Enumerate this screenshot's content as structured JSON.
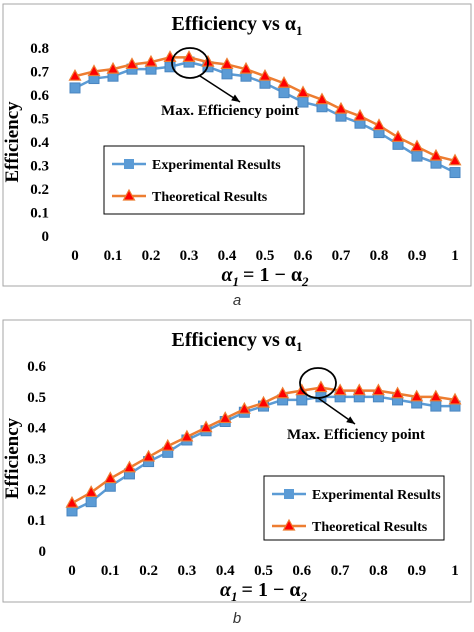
{
  "panel_labels": [
    "a",
    "b"
  ],
  "colors": {
    "experimental": "#5B9BD5",
    "theoretical": "#ED7D31",
    "theoretical_marker_fill": "#FF0000",
    "border": "#A6A6A6",
    "text": "#000000"
  },
  "chart_data": [
    {
      "type": "line",
      "title": "Efficiency vs α",
      "title_subscript": "1",
      "ylabel": "Efficiency",
      "xlabel": "α",
      "xlabel_subscript": "1",
      "xlabel_rest": "= 1 − α",
      "xlabel_rest_subscript": "2",
      "x": [
        0,
        0.05,
        0.1,
        0.15,
        0.2,
        0.25,
        0.3,
        0.35,
        0.4,
        0.45,
        0.5,
        0.55,
        0.6,
        0.65,
        0.7,
        0.75,
        0.8,
        0.85,
        0.9,
        0.95,
        1
      ],
      "xticks": [
        "0",
        "0.1",
        "0.2",
        "0.3",
        "0.4",
        "0.5",
        "0.6",
        "0.7",
        "0.8",
        "0.9",
        "1"
      ],
      "xtick_values": [
        0,
        0.1,
        0.2,
        0.3,
        0.4,
        0.5,
        0.6,
        0.7,
        0.8,
        0.9,
        1
      ],
      "yticks": [
        "0",
        "0.1",
        "0.2",
        "0.3",
        "0.4",
        "0.5",
        "0.6",
        "0.7",
        "0.8"
      ],
      "ytick_values": [
        0,
        0.1,
        0.2,
        0.3,
        0.4,
        0.5,
        0.6,
        0.7,
        0.8
      ],
      "xlim": [
        0,
        1
      ],
      "ylim": [
        0,
        0.8
      ],
      "grid": false,
      "legend_position": "center-left",
      "series": [
        {
          "name": "Experimental Results",
          "marker": "square",
          "values": [
            0.63,
            0.67,
            0.68,
            0.71,
            0.71,
            0.72,
            0.74,
            0.72,
            0.69,
            0.68,
            0.65,
            0.61,
            0.57,
            0.55,
            0.51,
            0.48,
            0.44,
            0.39,
            0.34,
            0.31,
            0.27
          ]
        },
        {
          "name": "Theoretical Results",
          "marker": "triangle",
          "values": [
            0.68,
            0.7,
            0.71,
            0.73,
            0.74,
            0.76,
            0.76,
            0.74,
            0.73,
            0.71,
            0.68,
            0.65,
            0.61,
            0.58,
            0.54,
            0.51,
            0.47,
            0.42,
            0.38,
            0.34,
            0.32
          ]
        }
      ],
      "annotation": {
        "text": "Max. Efficiency point",
        "x": 0.3,
        "y": 0.76
      }
    },
    {
      "type": "line",
      "title": "Efficiency vs α",
      "title_subscript": "1",
      "ylabel": "Efficiency",
      "xlabel": "α",
      "xlabel_subscript": "1",
      "xlabel_rest": "= 1 − α",
      "xlabel_rest_subscript": "2",
      "x": [
        0,
        0.05,
        0.1,
        0.15,
        0.2,
        0.25,
        0.3,
        0.35,
        0.4,
        0.45,
        0.5,
        0.55,
        0.6,
        0.65,
        0.7,
        0.75,
        0.8,
        0.85,
        0.9,
        0.95,
        1
      ],
      "xticks": [
        "0",
        "0.1",
        "0.2",
        "0.3",
        "0.4",
        "0.5",
        "0.6",
        "0.7",
        "0.8",
        "0.9",
        "1"
      ],
      "xtick_values": [
        0,
        0.1,
        0.2,
        0.3,
        0.4,
        0.5,
        0.6,
        0.7,
        0.8,
        0.9,
        1
      ],
      "yticks": [
        "0",
        "0.1",
        "0.2",
        "0.3",
        "0.4",
        "0.5",
        "0.6"
      ],
      "ytick_values": [
        0,
        0.1,
        0.2,
        0.3,
        0.4,
        0.5,
        0.6
      ],
      "xlim": [
        0,
        1
      ],
      "ylim": [
        0,
        0.6
      ],
      "grid": false,
      "legend_position": "bottom-right",
      "series": [
        {
          "name": "Experimental Results",
          "marker": "square",
          "values": [
            0.13,
            0.16,
            0.21,
            0.25,
            0.29,
            0.32,
            0.36,
            0.39,
            0.42,
            0.45,
            0.47,
            0.49,
            0.49,
            0.5,
            0.5,
            0.5,
            0.5,
            0.49,
            0.48,
            0.47,
            0.47
          ]
        },
        {
          "name": "Theoretical Results",
          "marker": "triangle",
          "values": [
            0.155,
            0.19,
            0.235,
            0.27,
            0.305,
            0.34,
            0.37,
            0.4,
            0.43,
            0.46,
            0.48,
            0.51,
            0.52,
            0.53,
            0.52,
            0.52,
            0.52,
            0.51,
            0.5,
            0.5,
            0.49
          ]
        }
      ],
      "annotation": {
        "text": "Max. Efficiency point",
        "x": 0.65,
        "y": 0.53
      }
    }
  ]
}
